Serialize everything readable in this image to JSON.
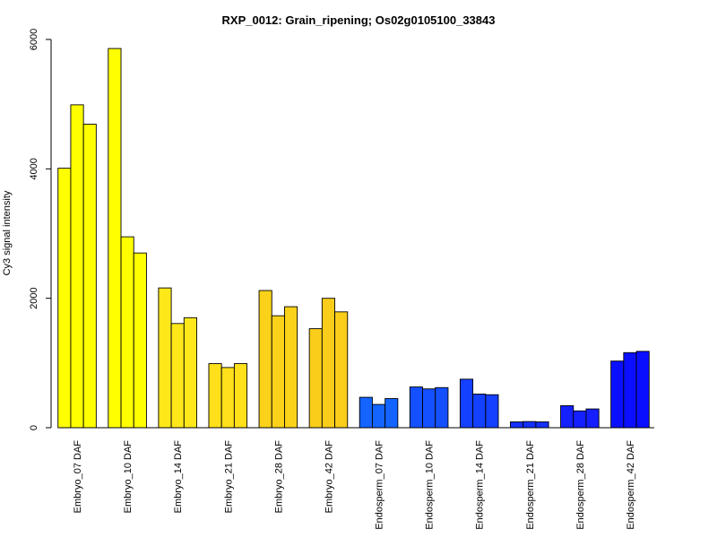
{
  "chart_data": {
    "type": "bar",
    "title": "RXP_0012: Grain_ripening; Os02g0105100_33843",
    "xlabel": "",
    "ylabel": "Cy3 signal intensity",
    "ylim": [
      0,
      6000
    ],
    "yticks": [
      0,
      2000,
      4000,
      6000
    ],
    "grid": false,
    "categories": [
      "Embryo_07 DAF",
      "Embryo_10 DAF",
      "Embryo_14 DAF",
      "Embryo_21 DAF",
      "Embryo_28 DAF",
      "Embryo_42 DAF",
      "Endosperm_07 DAF",
      "Endosperm_10 DAF",
      "Endosperm_14 DAF",
      "Endosperm_21 DAF",
      "Endosperm_28 DAF",
      "Endosperm_42 DAF"
    ],
    "group_colors": [
      "#ffff00",
      "#ffff00",
      "#ffe81a",
      "#ffe01a",
      "#fad21a",
      "#facd1a",
      "#1464ff",
      "#1450ff",
      "#1440ff",
      "#1430ff",
      "#1420ff",
      "#0a10ff"
    ],
    "replicates": [
      [
        4010,
        4990,
        4690
      ],
      [
        5860,
        2950,
        2700
      ],
      [
        2160,
        1610,
        1700
      ],
      [
        990,
        930,
        990
      ],
      [
        2120,
        1730,
        1870
      ],
      [
        1530,
        2000,
        1790
      ],
      [
        470,
        360,
        450
      ],
      [
        630,
        600,
        620
      ],
      [
        750,
        520,
        510
      ],
      [
        90,
        95,
        90
      ],
      [
        340,
        260,
        290
      ],
      [
        1030,
        1160,
        1180
      ]
    ]
  }
}
